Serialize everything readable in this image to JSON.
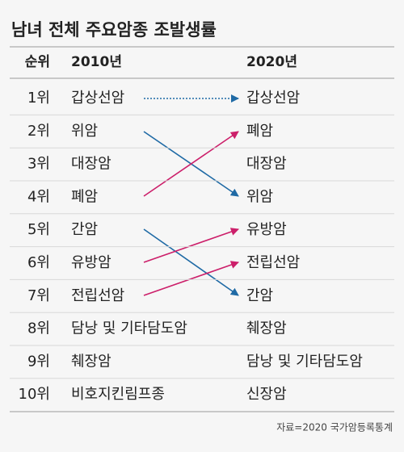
{
  "header": {
    "title": "남녀 전체 주요암종 조발생률"
  },
  "table": {
    "columns": [
      "순위",
      "2010년",
      "2020년"
    ],
    "rows": [
      [
        "1위",
        "갑상선암",
        "갑상선암"
      ],
      [
        "2위",
        "위암",
        "폐암"
      ],
      [
        "3위",
        "대장암",
        "대장암"
      ],
      [
        "4위",
        "폐암",
        "위암"
      ],
      [
        "5위",
        "간암",
        "유방암"
      ],
      [
        "6위",
        "유방암",
        "전립선암"
      ],
      [
        "7위",
        "전립선암",
        "간암"
      ],
      [
        "8위",
        "담낭 및 기타담도암",
        "췌장암"
      ],
      [
        "9위",
        "췌장암",
        "담낭 및 기타담도암"
      ],
      [
        "10위",
        "비호지킨림프종",
        "신장암"
      ]
    ]
  },
  "source": "자료=2020 국가암등록통계"
}
